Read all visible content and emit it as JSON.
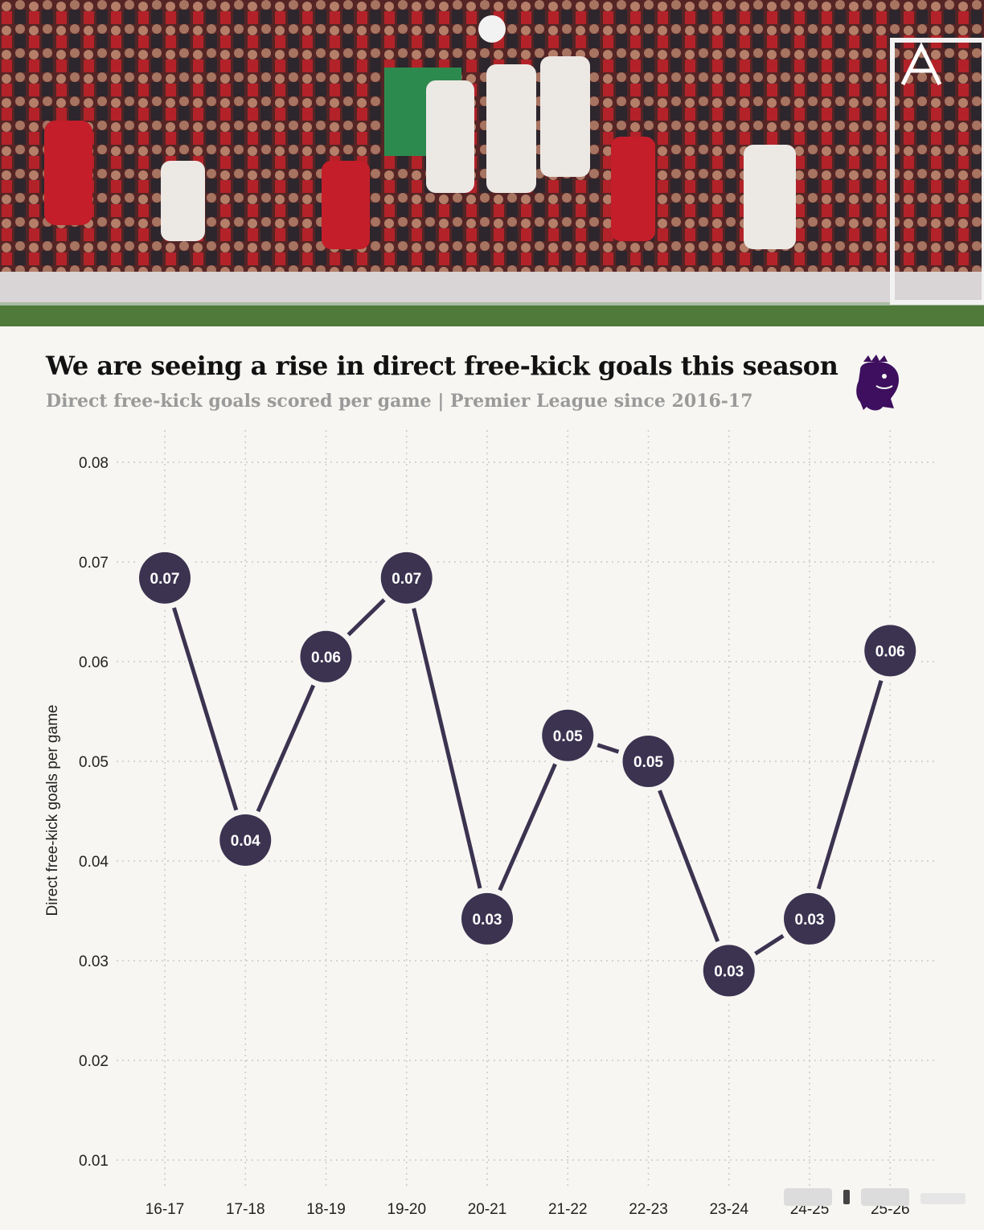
{
  "header": {
    "publisher_logo": "the-athletic-a-icon",
    "league_logo": "premier-league-lion-icon"
  },
  "chart_data": {
    "type": "line",
    "title": "We are seeing a rise in direct free-kick goals this season",
    "subtitle": "Direct free-kick goals scored per game | Premier League since 2016-17",
    "xlabel": "",
    "ylabel": "Direct free-kick goals per game",
    "categories": [
      "16-17",
      "17-18",
      "18-19",
      "19-20",
      "20-21",
      "21-22",
      "22-23",
      "23-24",
      "24-25",
      "25-26"
    ],
    "series": [
      {
        "values": [
          0.0684,
          0.0421,
          0.0605,
          0.0684,
          0.0342,
          0.0526,
          0.05,
          0.029,
          0.0342,
          0.0611
        ],
        "labels": [
          "0.07",
          "0.04",
          "0.06",
          "0.07",
          "0.03",
          "0.05",
          "0.05",
          "0.03",
          "0.03",
          "0.06"
        ]
      }
    ],
    "yticks": [
      "0.08",
      "0.07",
      "0.06",
      "0.05",
      "0.04",
      "0.03",
      "0.02",
      "0.01"
    ],
    "ylim": [
      0.01,
      0.08
    ],
    "grid": true,
    "legend": "none",
    "colors": {
      "line": "#3b3350",
      "marker": "#3b3350",
      "marker_text": "#ffffff",
      "grid": "#c9c9c9",
      "axis_text": "#222222"
    }
  }
}
